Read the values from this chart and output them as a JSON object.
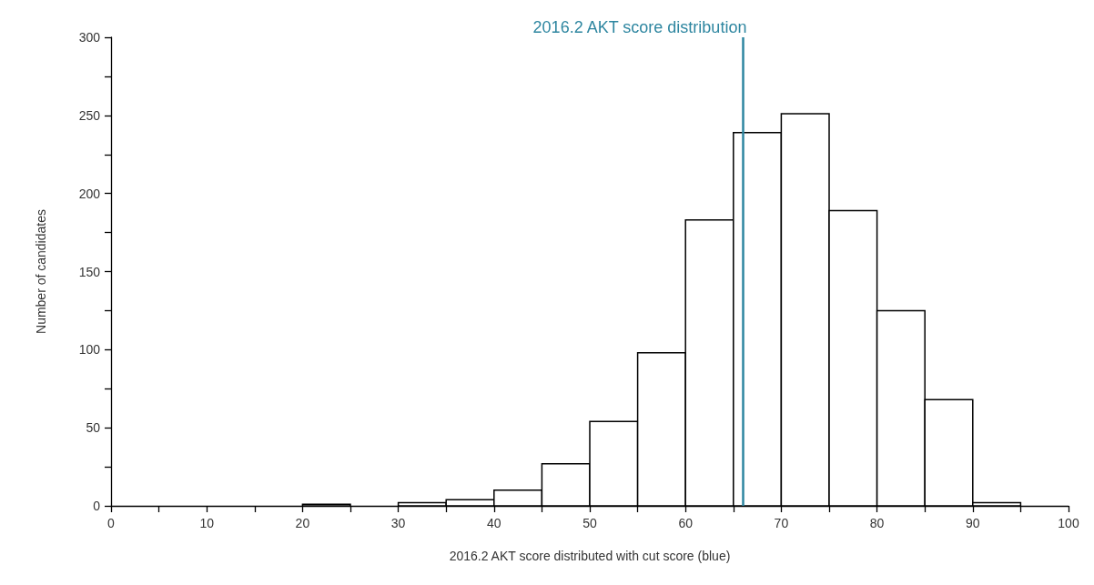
{
  "chart_data": {
    "type": "histogram",
    "title": "2016.2 AKT score distribution",
    "xlabel": "2016.2 AKT score distributed with cut score (blue)",
    "ylabel": "Number of candidates",
    "bins": [
      0,
      5,
      10,
      15,
      20,
      25,
      30,
      35,
      40,
      45,
      50,
      55,
      60,
      65,
      70,
      75,
      80,
      85,
      90,
      95,
      100
    ],
    "values": [
      0,
      0,
      0,
      0,
      1,
      0,
      2,
      4,
      10,
      27,
      54,
      98,
      183,
      239,
      251,
      189,
      125,
      68,
      2,
      0
    ],
    "color": "#ffffff",
    "xlim": [
      0,
      100
    ],
    "xticks": [
      0,
      {
        "value": 5,
        "label": null
      },
      10,
      {
        "value": 15,
        "label": null
      },
      20,
      {
        "value": 25,
        "label": null
      },
      30,
      {
        "value": 35,
        "label": null
      },
      40,
      {
        "value": 45,
        "label": null
      },
      50,
      {
        "value": 55,
        "label": null
      },
      60,
      {
        "value": 65,
        "label": null
      },
      70,
      {
        "value": 75,
        "label": null
      },
      80,
      {
        "value": 85,
        "label": null
      },
      90,
      {
        "value": 95,
        "label": null
      },
      100
    ],
    "ylim": [
      0,
      300
    ],
    "yticks": [
      0,
      {
        "value": 25,
        "label": null
      },
      50,
      {
        "value": 75,
        "label": null
      },
      100,
      {
        "value": 125,
        "label": null
      },
      150,
      {
        "value": 175,
        "label": null
      },
      200,
      {
        "value": 225,
        "label": null
      },
      250,
      {
        "value": 275,
        "label": null
      },
      300
    ],
    "ref_lines": [
      {
        "axis": "x",
        "value": 66,
        "color": "#2e86a0"
      }
    ]
  }
}
